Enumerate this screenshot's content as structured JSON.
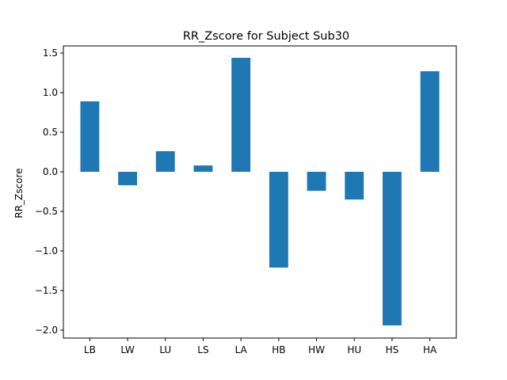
{
  "chart_data": {
    "type": "bar",
    "title": "RR_Zscore for Subject Sub30",
    "xlabel": "",
    "ylabel": "RR_Zscore",
    "categories": [
      "LB",
      "LW",
      "LU",
      "LS",
      "LA",
      "HB",
      "HW",
      "HU",
      "HS",
      "HA"
    ],
    "values": [
      0.89,
      -0.17,
      0.26,
      0.08,
      1.44,
      -1.21,
      -0.24,
      -0.35,
      -1.94,
      1.27
    ],
    "ylim": [
      -2.1,
      1.59
    ],
    "yticks": [
      -2.0,
      -1.5,
      -1.0,
      -0.5,
      0.0,
      0.5,
      1.0,
      1.5
    ],
    "ytick_labels": [
      "−2.0",
      "−1.5",
      "−1.0",
      "−0.5",
      "0.0",
      "0.5",
      "1.0",
      "1.5"
    ],
    "bar_color": "#1f77b4",
    "grid": false,
    "legend": "none"
  }
}
